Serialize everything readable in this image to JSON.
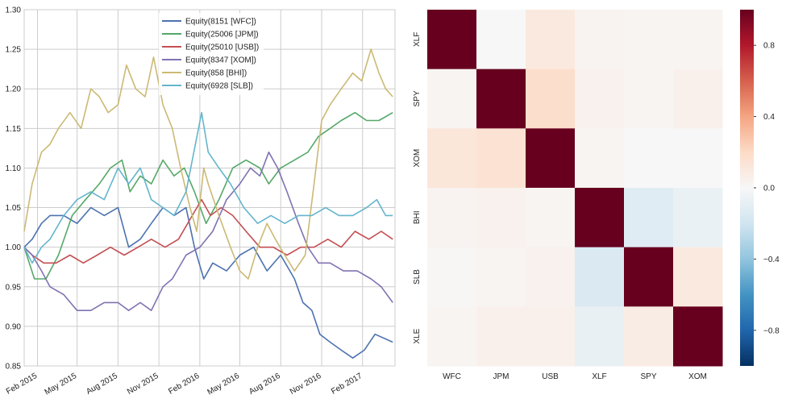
{
  "chart_data": [
    {
      "type": "line",
      "title": "",
      "xlabel": "",
      "ylabel": "",
      "ylim": [
        0.85,
        1.3
      ],
      "xlim": [
        "2015-01-02",
        "2017-04-15"
      ],
      "y_ticks": [
        0.85,
        0.9,
        0.95,
        1.0,
        1.05,
        1.1,
        1.15,
        1.2,
        1.25,
        1.3
      ],
      "y_tick_labels": [
        "0.85",
        "0.90",
        "0.95",
        "1.00",
        "1.05",
        "1.10",
        "1.15",
        "1.20",
        "1.25",
        "1.30"
      ],
      "x_ticks": [
        "2015-02-01",
        "2015-05-01",
        "2015-08-01",
        "2015-11-01",
        "2016-02-01",
        "2016-05-01",
        "2016-08-01",
        "2016-11-01",
        "2017-02-01"
      ],
      "x_tick_labels": [
        "Feb 2015",
        "May 2015",
        "Aug 2015",
        "Nov 2015",
        "Feb 2016",
        "May 2016",
        "Aug 2016",
        "Nov 2016",
        "Feb 2017"
      ],
      "grid": true,
      "legend_position": "top-center",
      "series": [
        {
          "name": "Equity(8151 [WFC])",
          "color": "#4c72b0",
          "points": [
            [
              "2015-01-02",
              1.0
            ],
            [
              "2015-01-20",
              1.01
            ],
            [
              "2015-02-10",
              1.03
            ],
            [
              "2015-03-01",
              1.04
            ],
            [
              "2015-04-01",
              1.04
            ],
            [
              "2015-05-01",
              1.03
            ],
            [
              "2015-06-01",
              1.05
            ],
            [
              "2015-07-01",
              1.04
            ],
            [
              "2015-08-01",
              1.05
            ],
            [
              "2015-08-25",
              1.0
            ],
            [
              "2015-09-20",
              1.01
            ],
            [
              "2015-10-15",
              1.03
            ],
            [
              "2015-11-10",
              1.05
            ],
            [
              "2015-12-05",
              1.04
            ],
            [
              "2016-01-01",
              1.05
            ],
            [
              "2016-01-20",
              1.0
            ],
            [
              "2016-02-10",
              0.96
            ],
            [
              "2016-03-01",
              0.98
            ],
            [
              "2016-04-01",
              0.97
            ],
            [
              "2016-05-01",
              0.99
            ],
            [
              "2016-06-01",
              1.0
            ],
            [
              "2016-07-01",
              0.97
            ],
            [
              "2016-08-01",
              0.99
            ],
            [
              "2016-09-01",
              0.96
            ],
            [
              "2016-09-20",
              0.93
            ],
            [
              "2016-10-10",
              0.92
            ],
            [
              "2016-10-28",
              0.89
            ],
            [
              "2016-11-20",
              0.88
            ],
            [
              "2016-12-15",
              0.87
            ],
            [
              "2017-01-10",
              0.86
            ],
            [
              "2017-02-05",
              0.87
            ],
            [
              "2017-03-01",
              0.89
            ],
            [
              "2017-04-10",
              0.88
            ]
          ]
        },
        {
          "name": "Equity(25006 [JPM])",
          "color": "#55a868",
          "points": [
            [
              "2015-01-02",
              1.0
            ],
            [
              "2015-01-25",
              0.96
            ],
            [
              "2015-02-20",
              0.96
            ],
            [
              "2015-03-20",
              0.99
            ],
            [
              "2015-04-20",
              1.04
            ],
            [
              "2015-05-20",
              1.06
            ],
            [
              "2015-06-20",
              1.08
            ],
            [
              "2015-07-15",
              1.1
            ],
            [
              "2015-08-10",
              1.11
            ],
            [
              "2015-08-28",
              1.07
            ],
            [
              "2015-09-20",
              1.09
            ],
            [
              "2015-10-15",
              1.08
            ],
            [
              "2015-11-10",
              1.11
            ],
            [
              "2015-12-05",
              1.09
            ],
            [
              "2015-12-28",
              1.1
            ],
            [
              "2016-01-20",
              1.07
            ],
            [
              "2016-02-15",
              1.03
            ],
            [
              "2016-03-15",
              1.06
            ],
            [
              "2016-04-15",
              1.1
            ],
            [
              "2016-05-15",
              1.11
            ],
            [
              "2016-06-15",
              1.1
            ],
            [
              "2016-07-05",
              1.08
            ],
            [
              "2016-08-01",
              1.1
            ],
            [
              "2016-09-01",
              1.11
            ],
            [
              "2016-10-01",
              1.12
            ],
            [
              "2016-10-25",
              1.14
            ],
            [
              "2016-11-20",
              1.15
            ],
            [
              "2016-12-15",
              1.16
            ],
            [
              "2017-01-15",
              1.17
            ],
            [
              "2017-02-10",
              1.16
            ],
            [
              "2017-03-10",
              1.16
            ],
            [
              "2017-04-10",
              1.17
            ]
          ]
        },
        {
          "name": "Equity(25010 [USB])",
          "color": "#c44e52",
          "points": [
            [
              "2015-01-02",
              1.0
            ],
            [
              "2015-01-20",
              0.99
            ],
            [
              "2015-02-15",
              0.98
            ],
            [
              "2015-03-15",
              0.98
            ],
            [
              "2015-04-15",
              0.99
            ],
            [
              "2015-05-15",
              0.98
            ],
            [
              "2015-06-15",
              0.99
            ],
            [
              "2015-07-15",
              1.0
            ],
            [
              "2015-08-15",
              0.99
            ],
            [
              "2015-09-15",
              1.0
            ],
            [
              "2015-10-15",
              1.01
            ],
            [
              "2015-11-15",
              1.0
            ],
            [
              "2015-12-15",
              1.01
            ],
            [
              "2016-01-15",
              1.04
            ],
            [
              "2016-02-05",
              1.06
            ],
            [
              "2016-02-25",
              1.04
            ],
            [
              "2016-03-20",
              1.05
            ],
            [
              "2016-04-15",
              1.04
            ],
            [
              "2016-05-15",
              1.02
            ],
            [
              "2016-06-15",
              1.0
            ],
            [
              "2016-07-15",
              1.0
            ],
            [
              "2016-08-15",
              0.99
            ],
            [
              "2016-09-15",
              1.0
            ],
            [
              "2016-10-15",
              1.0
            ],
            [
              "2016-11-15",
              1.01
            ],
            [
              "2016-12-15",
              1.0
            ],
            [
              "2017-01-15",
              1.02
            ],
            [
              "2017-02-15",
              1.01
            ],
            [
              "2017-03-15",
              1.02
            ],
            [
              "2017-04-10",
              1.01
            ]
          ]
        },
        {
          "name": "Equity(8347 [XOM])",
          "color": "#8172b2",
          "points": [
            [
              "2015-01-02",
              1.0
            ],
            [
              "2015-01-20",
              0.99
            ],
            [
              "2015-02-10",
              0.97
            ],
            [
              "2015-03-01",
              0.95
            ],
            [
              "2015-04-01",
              0.94
            ],
            [
              "2015-05-01",
              0.92
            ],
            [
              "2015-06-01",
              0.92
            ],
            [
              "2015-07-01",
              0.93
            ],
            [
              "2015-08-01",
              0.93
            ],
            [
              "2015-08-25",
              0.92
            ],
            [
              "2015-09-20",
              0.93
            ],
            [
              "2015-10-15",
              0.92
            ],
            [
              "2015-11-10",
              0.95
            ],
            [
              "2015-12-01",
              0.96
            ],
            [
              "2016-01-01",
              0.99
            ],
            [
              "2016-02-01",
              1.0
            ],
            [
              "2016-03-01",
              1.02
            ],
            [
              "2016-04-01",
              1.06
            ],
            [
              "2016-05-01",
              1.08
            ],
            [
              "2016-05-25",
              1.1
            ],
            [
              "2016-06-15",
              1.09
            ],
            [
              "2016-07-05",
              1.12
            ],
            [
              "2016-07-25",
              1.1
            ],
            [
              "2016-08-15",
              1.07
            ],
            [
              "2016-09-10",
              1.03
            ],
            [
              "2016-10-01",
              1.0
            ],
            [
              "2016-10-25",
              0.98
            ],
            [
              "2016-11-20",
              0.98
            ],
            [
              "2016-12-20",
              0.97
            ],
            [
              "2017-01-20",
              0.97
            ],
            [
              "2017-02-20",
              0.96
            ],
            [
              "2017-03-15",
              0.95
            ],
            [
              "2017-04-10",
              0.93
            ]
          ]
        },
        {
          "name": "Equity(858 [BHI])",
          "color": "#ccb974",
          "points": [
            [
              "2015-01-02",
              1.02
            ],
            [
              "2015-01-20",
              1.08
            ],
            [
              "2015-02-10",
              1.12
            ],
            [
              "2015-03-01",
              1.13
            ],
            [
              "2015-03-20",
              1.15
            ],
            [
              "2015-04-15",
              1.17
            ],
            [
              "2015-05-10",
              1.15
            ],
            [
              "2015-06-01",
              1.2
            ],
            [
              "2015-06-20",
              1.19
            ],
            [
              "2015-07-10",
              1.17
            ],
            [
              "2015-08-01",
              1.18
            ],
            [
              "2015-08-20",
              1.23
            ],
            [
              "2015-09-10",
              1.2
            ],
            [
              "2015-10-01",
              1.19
            ],
            [
              "2015-10-20",
              1.24
            ],
            [
              "2015-11-10",
              1.18
            ],
            [
              "2015-12-01",
              1.15
            ],
            [
              "2015-12-20",
              1.1
            ],
            [
              "2016-01-10",
              1.05
            ],
            [
              "2016-01-25",
              1.02
            ],
            [
              "2016-02-10",
              1.1
            ],
            [
              "2016-02-20",
              1.08
            ],
            [
              "2016-03-15",
              1.04
            ],
            [
              "2016-04-10",
              1.0
            ],
            [
              "2016-05-01",
              0.97
            ],
            [
              "2016-05-20",
              0.96
            ],
            [
              "2016-06-10",
              1.0
            ],
            [
              "2016-07-01",
              1.03
            ],
            [
              "2016-07-20",
              1.01
            ],
            [
              "2016-08-10",
              0.99
            ],
            [
              "2016-09-01",
              0.97
            ],
            [
              "2016-09-25",
              0.99
            ],
            [
              "2016-10-15",
              1.08
            ],
            [
              "2016-11-01",
              1.16
            ],
            [
              "2016-11-20",
              1.18
            ],
            [
              "2016-12-15",
              1.2
            ],
            [
              "2017-01-10",
              1.22
            ],
            [
              "2017-01-30",
              1.21
            ],
            [
              "2017-02-20",
              1.25
            ],
            [
              "2017-03-10",
              1.22
            ],
            [
              "2017-03-25",
              1.2
            ],
            [
              "2017-04-10",
              1.19
            ]
          ]
        },
        {
          "name": "Equity(6928 [SLB])",
          "color": "#64b5cd",
          "points": [
            [
              "2015-01-02",
              1.0
            ],
            [
              "2015-01-20",
              0.98
            ],
            [
              "2015-02-10",
              1.0
            ],
            [
              "2015-03-01",
              1.01
            ],
            [
              "2015-04-01",
              1.04
            ],
            [
              "2015-05-01",
              1.06
            ],
            [
              "2015-06-01",
              1.07
            ],
            [
              "2015-07-01",
              1.06
            ],
            [
              "2015-08-01",
              1.1
            ],
            [
              "2015-08-25",
              1.08
            ],
            [
              "2015-09-20",
              1.1
            ],
            [
              "2015-10-15",
              1.06
            ],
            [
              "2015-11-10",
              1.05
            ],
            [
              "2015-12-05",
              1.04
            ],
            [
              "2016-01-01",
              1.07
            ],
            [
              "2016-02-05",
              1.17
            ],
            [
              "2016-02-20",
              1.12
            ],
            [
              "2016-03-15",
              1.1
            ],
            [
              "2016-04-10",
              1.08
            ],
            [
              "2016-05-10",
              1.05
            ],
            [
              "2016-06-10",
              1.03
            ],
            [
              "2016-07-10",
              1.04
            ],
            [
              "2016-08-10",
              1.03
            ],
            [
              "2016-09-10",
              1.04
            ],
            [
              "2016-10-10",
              1.04
            ],
            [
              "2016-11-10",
              1.05
            ],
            [
              "2016-12-10",
              1.04
            ],
            [
              "2017-01-10",
              1.04
            ],
            [
              "2017-02-10",
              1.05
            ],
            [
              "2017-03-05",
              1.06
            ],
            [
              "2017-03-25",
              1.04
            ],
            [
              "2017-04-10",
              1.04
            ]
          ]
        }
      ]
    },
    {
      "type": "heatmap",
      "title": "",
      "x_labels": [
        "WFC",
        "JPM",
        "USB",
        "XLF",
        "SPY",
        "XOM"
      ],
      "y_labels": [
        "XLF",
        "SPY",
        "XOM",
        "BHI",
        "SLB",
        "XLE"
      ],
      "values": [
        [
          1.0,
          0.0,
          0.1,
          0.03,
          0.02,
          0.02
        ],
        [
          0.02,
          1.0,
          0.18,
          0.04,
          0.02,
          0.05
        ],
        [
          0.12,
          0.15,
          1.0,
          0.02,
          0.0,
          0.0
        ],
        [
          0.03,
          0.04,
          0.02,
          1.0,
          -0.12,
          -0.07
        ],
        [
          0.01,
          0.02,
          0.04,
          -0.15,
          1.0,
          0.1
        ],
        [
          0.02,
          0.05,
          0.05,
          -0.08,
          0.08,
          1.0
        ]
      ],
      "vmin": -1.0,
      "vmax": 1.0,
      "colorbar_ticks": [
        0.8,
        0.4,
        0.0,
        -0.4,
        -0.8
      ],
      "colorbar_tick_labels": [
        "0.8",
        "0.4",
        "0.0",
        "−0.4",
        "−0.8"
      ],
      "colormap": "RdBu_r",
      "diverging_colors": {
        "low": "#053061",
        "mid": "#f7f7f7",
        "high": "#67001f"
      }
    }
  ]
}
